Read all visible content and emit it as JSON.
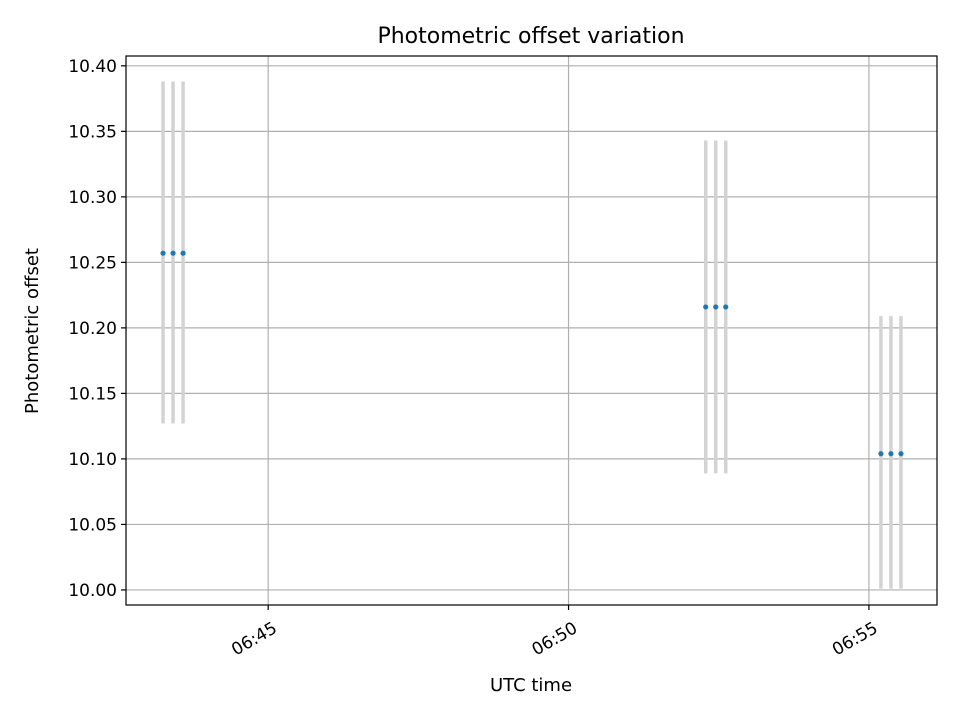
{
  "chart_data": {
    "type": "scatter",
    "title": "Photometric offset variation",
    "xlabel": "UTC time",
    "ylabel": "Photometric offset",
    "x_axis_type": "time",
    "xlim": [
      "06:42:38",
      "06:56:08"
    ],
    "ylim": [
      9.9885,
      10.4075
    ],
    "grid": true,
    "x_ticks": [
      "06:45",
      "06:50",
      "06:55"
    ],
    "y_ticks": [
      "10.00",
      "10.05",
      "10.10",
      "10.15",
      "10.20",
      "10.25",
      "10.30",
      "10.35",
      "10.40"
    ],
    "point_color": "#1f77b4",
    "errorbar_color": "#d3d3d3",
    "points": [
      {
        "x": "06:43:15",
        "y": 10.257,
        "y_low": 10.127,
        "y_high": 10.388
      },
      {
        "x": "06:43:25",
        "y": 10.257,
        "y_low": 10.127,
        "y_high": 10.388
      },
      {
        "x": "06:43:35",
        "y": 10.257,
        "y_low": 10.127,
        "y_high": 10.388
      },
      {
        "x": "06:52:17",
        "y": 10.216,
        "y_low": 10.089,
        "y_high": 10.343
      },
      {
        "x": "06:52:27",
        "y": 10.216,
        "y_low": 10.089,
        "y_high": 10.343
      },
      {
        "x": "06:52:37",
        "y": 10.216,
        "y_low": 10.089,
        "y_high": 10.343
      },
      {
        "x": "06:55:12",
        "y": 10.104,
        "y_low": 10.001,
        "y_high": 10.209
      },
      {
        "x": "06:55:22",
        "y": 10.104,
        "y_low": 10.001,
        "y_high": 10.209
      },
      {
        "x": "06:55:32",
        "y": 10.104,
        "y_low": 10.001,
        "y_high": 10.209
      }
    ]
  }
}
